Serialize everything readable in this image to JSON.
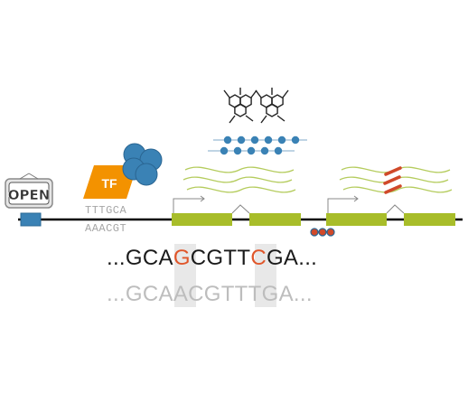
{
  "open_sign": {
    "text": "OPEN"
  },
  "tf": {
    "label": "TF",
    "motif_top": "TTTGCA",
    "motif_bottom": "AAACGT"
  },
  "sequence": {
    "reference": {
      "prefix": "...GCA",
      "snp1": "G",
      "middle": "CGTT",
      "snp2": "C",
      "suffix": "GA..."
    },
    "alternate": {
      "prefix": "...GCA",
      "snp1": "A",
      "middle": "CGTT",
      "snp2": "T",
      "suffix": "GA..."
    }
  },
  "colors": {
    "exon": "#a8bd2a",
    "tf_box": "#f39200",
    "protein": "#3a82b5",
    "transcript": "#b5cc5e",
    "variant": "#e0562a",
    "regulatory_box": "#3a82b5",
    "methylation": "#d0492a",
    "genome_line": "#000000"
  }
}
